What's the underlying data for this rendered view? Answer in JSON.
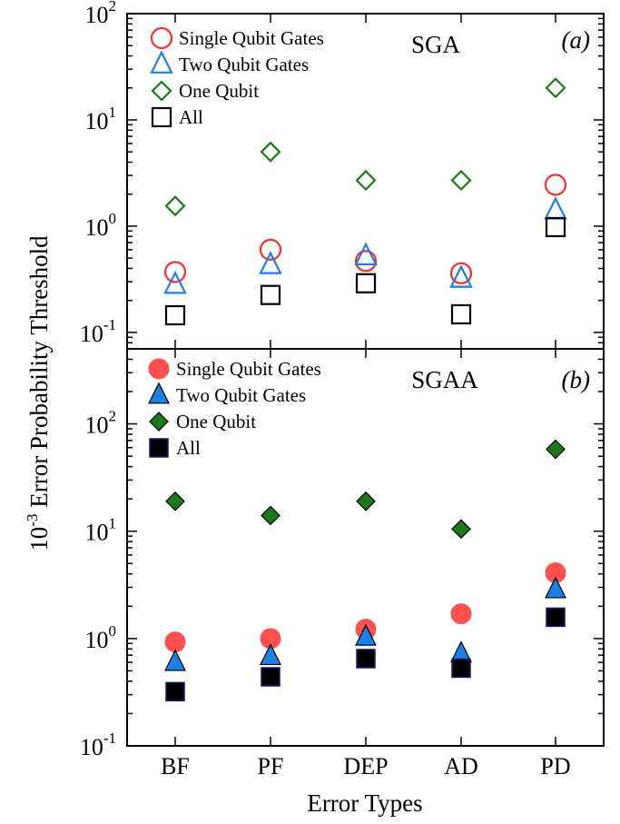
{
  "figure": {
    "ylabel_base": "10",
    "ylabel_exp": "-3",
    "ylabel_text": " Error Probability Threshold",
    "xlabel": "Error Types"
  },
  "chart_data": [
    {
      "type": "scatter",
      "panel_title": "SGA",
      "panel_label": "(a)",
      "y_scale": "log",
      "ylim": [
        0.07,
        100
      ],
      "y_ticks": [
        {
          "base": "10",
          "exp": "2",
          "value": 100
        },
        {
          "base": "10",
          "exp": "1",
          "value": 10
        },
        {
          "base": "10",
          "exp": "0",
          "value": 1
        },
        {
          "base": "10",
          "exp": "-1",
          "value": 0.1
        }
      ],
      "categories": [
        "BF",
        "PF",
        "DEP",
        "AD",
        "PD"
      ],
      "legend_position": "top-left",
      "series": [
        {
          "name": "Single Qubit Gates",
          "marker": "circle",
          "filled": false,
          "color": "#ff2a2a",
          "values": [
            0.37,
            0.6,
            0.47,
            0.36,
            2.45
          ]
        },
        {
          "name": "Two Qubit Gates",
          "marker": "triangle",
          "filled": false,
          "color": "#1a7fe6",
          "values": [
            0.28,
            0.43,
            0.52,
            0.32,
            1.4
          ]
        },
        {
          "name": "One Qubit",
          "marker": "diamond",
          "filled": false,
          "color": "#1a7a1a",
          "values": [
            1.55,
            5.0,
            2.7,
            2.7,
            20.0
          ]
        },
        {
          "name": "All",
          "marker": "square",
          "filled": false,
          "color": "#000000",
          "values": [
            0.145,
            0.225,
            0.29,
            0.148,
            0.98
          ]
        }
      ]
    },
    {
      "type": "scatter",
      "panel_title": "SGAA",
      "panel_label": "(b)",
      "y_scale": "log",
      "ylim": [
        0.1,
        500
      ],
      "y_ticks": [
        {
          "base": "10",
          "exp": "2",
          "value": 100
        },
        {
          "base": "10",
          "exp": "1",
          "value": 10
        },
        {
          "base": "10",
          "exp": "0",
          "value": 1
        },
        {
          "base": "10",
          "exp": "-1",
          "value": 0.1
        }
      ],
      "categories": [
        "BF",
        "PF",
        "DEP",
        "AD",
        "PD"
      ],
      "legend_position": "top-left",
      "series": [
        {
          "name": "Single Qubit Gates",
          "marker": "circle",
          "filled": true,
          "color": "#ff5050",
          "values": [
            0.93,
            1.0,
            1.22,
            1.7,
            4.1
          ]
        },
        {
          "name": "Two Qubit Gates",
          "marker": "triangle",
          "filled": true,
          "color": "#1a7fe6",
          "values": [
            0.6,
            0.68,
            1.03,
            0.72,
            2.85
          ]
        },
        {
          "name": "One Qubit",
          "marker": "diamond",
          "filled": true,
          "color": "#1a7a1a",
          "values": [
            19.0,
            14.0,
            19.0,
            10.5,
            58.0
          ]
        },
        {
          "name": "All",
          "marker": "square",
          "filled": true,
          "color": "#000000",
          "values": [
            0.32,
            0.44,
            0.65,
            0.53,
            1.58
          ]
        }
      ]
    }
  ]
}
